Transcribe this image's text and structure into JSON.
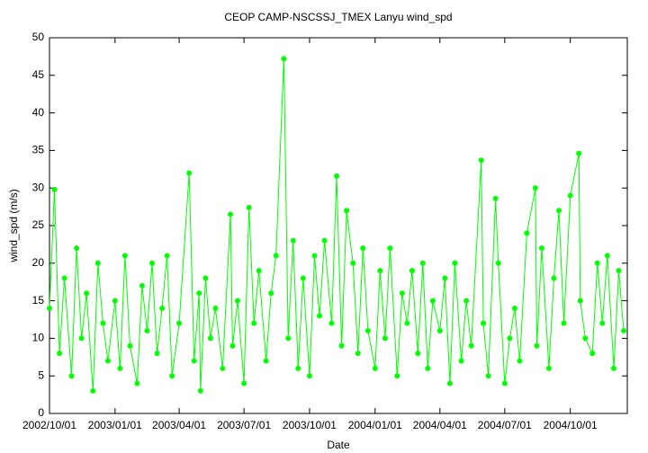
{
  "chart_data": {
    "type": "line",
    "title": "CEOP CAMP-NSCSSJ_TMEX Lanyu  wind_spd",
    "x_label": "Date",
    "y_label": "wind_spd (m/s)",
    "color": "#00ff00",
    "markers": true,
    "xlim": [
      "2002/10/01",
      "2004/12/20"
    ],
    "xticks": [
      "2002/10/01",
      "2003/01/01",
      "2003/04/01",
      "2003/07/01",
      "2003/10/01",
      "2004/01/01",
      "2004/04/01",
      "2004/07/01",
      "2004/10/01"
    ],
    "ylim": [
      0,
      50
    ],
    "yticks": [
      0,
      5,
      10,
      15,
      20,
      25,
      30,
      35,
      40,
      45,
      50
    ],
    "x": [
      "2002/10/01",
      "2002/10/08",
      "2002/10/15",
      "2002/10/22",
      "2002/11/01",
      "2002/11/08",
      "2002/11/15",
      "2002/11/22",
      "2002/12/01",
      "2002/12/08",
      "2002/12/15",
      "2002/12/22",
      "2003/01/01",
      "2003/01/08",
      "2003/01/15",
      "2003/01/22",
      "2003/02/01",
      "2003/02/08",
      "2003/02/15",
      "2003/02/22",
      "2003/03/01",
      "2003/03/08",
      "2003/03/15",
      "2003/03/22",
      "2003/04/01",
      "2003/04/15",
      "2003/04/22",
      "2003/04/29",
      "2003/05/01",
      "2003/05/08",
      "2003/05/15",
      "2003/05/22",
      "2003/06/01",
      "2003/06/12",
      "2003/06/15",
      "2003/06/22",
      "2003/07/01",
      "2003/07/08",
      "2003/07/15",
      "2003/07/22",
      "2003/08/01",
      "2003/08/08",
      "2003/08/15",
      "2003/08/26",
      "2003/09/01",
      "2003/09/08",
      "2003/09/15",
      "2003/09/22",
      "2003/10/01",
      "2003/10/08",
      "2003/10/15",
      "2003/10/22",
      "2003/11/01",
      "2003/11/08",
      "2003/11/15",
      "2003/11/22",
      "2003/12/01",
      "2003/12/08",
      "2003/12/15",
      "2003/12/22",
      "2004/01/01",
      "2004/01/08",
      "2004/01/15",
      "2004/01/22",
      "2004/02/01",
      "2004/02/08",
      "2004/02/15",
      "2004/02/22",
      "2004/03/01",
      "2004/03/08",
      "2004/03/15",
      "2004/03/22",
      "2004/04/01",
      "2004/04/08",
      "2004/04/15",
      "2004/04/22",
      "2004/05/01",
      "2004/05/08",
      "2004/05/15",
      "2004/05/29",
      "2004/06/01",
      "2004/06/08",
      "2004/06/18",
      "2004/06/22",
      "2004/07/01",
      "2004/07/08",
      "2004/07/15",
      "2004/07/22",
      "2004/08/01",
      "2004/08/13",
      "2004/08/15",
      "2004/08/22",
      "2004/09/01",
      "2004/09/08",
      "2004/09/15",
      "2004/09/22",
      "2004/10/01",
      "2004/10/13",
      "2004/10/15",
      "2004/10/22",
      "2004/11/01",
      "2004/11/08",
      "2004/11/15",
      "2004/11/22",
      "2004/12/01",
      "2004/12/08",
      "2004/12/15"
    ],
    "values": [
      14,
      29.8,
      8,
      18,
      5,
      22,
      10,
      16,
      3,
      20,
      12,
      7,
      15,
      6,
      21,
      9,
      4,
      17,
      11,
      20,
      8,
      14,
      21,
      5,
      12,
      32,
      7,
      16,
      3,
      18,
      10,
      14,
      6,
      26.5,
      9,
      15,
      4,
      27.4,
      12,
      19,
      7,
      16,
      21,
      47.2,
      10,
      23,
      6,
      18,
      5,
      21,
      13,
      23,
      12,
      31.6,
      9,
      27,
      20,
      8,
      22,
      11,
      6,
      19,
      10,
      22,
      5,
      16,
      12,
      19,
      8,
      20,
      6,
      15,
      11,
      18,
      4,
      20,
      7,
      15,
      9,
      33.7,
      12,
      5,
      28.6,
      20,
      4,
      10,
      14,
      7,
      24,
      30,
      9,
      22,
      6,
      18,
      27,
      12,
      29,
      34.6,
      15,
      10,
      8,
      20,
      12,
      21,
      6,
      19,
      11
    ]
  }
}
